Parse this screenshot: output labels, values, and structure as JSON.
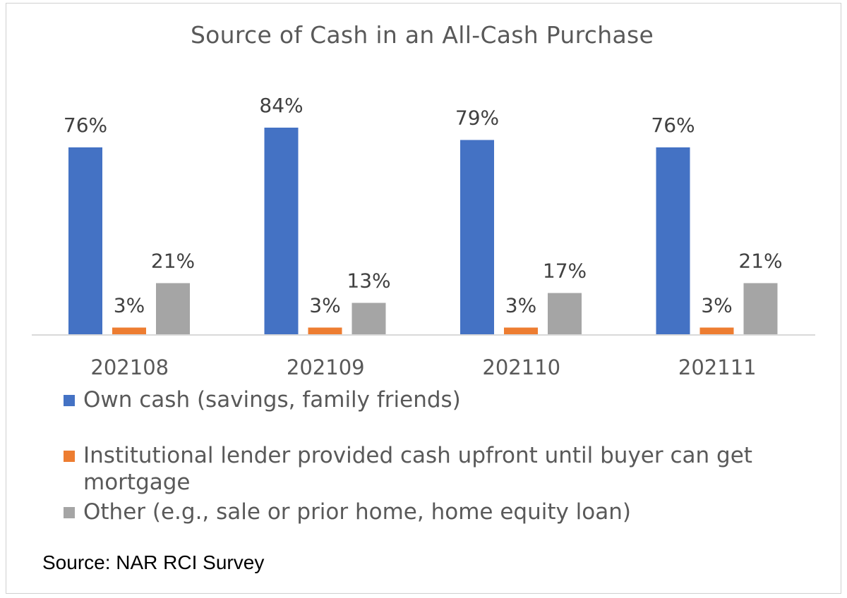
{
  "chart_data": {
    "type": "bar",
    "title": "Source of Cash in an All-Cash Purchase",
    "categories": [
      "202108",
      "202109",
      "202110",
      "202111"
    ],
    "series": [
      {
        "name": "Own cash (savings, family friends)",
        "color": "#4472C4",
        "values": [
          76,
          84,
          79,
          76
        ],
        "labels": [
          "76%",
          "84%",
          "79%",
          "76%"
        ]
      },
      {
        "name": "Institutional lender provided cash upfront until buyer can get mortgage",
        "color": "#ED7D31",
        "values": [
          3,
          3,
          3,
          3
        ],
        "labels": [
          "3%",
          "3%",
          "3%",
          "3%"
        ]
      },
      {
        "name": "Other (e.g., sale or prior home, home equity loan)",
        "color": "#A5A5A5",
        "values": [
          21,
          13,
          17,
          21
        ],
        "labels": [
          "21%",
          "13%",
          "17%",
          "21%"
        ]
      }
    ],
    "ylim": [
      0,
      100
    ],
    "grid": false,
    "legend_position": "bottom"
  },
  "source_note": "Source: NAR RCI Survey"
}
